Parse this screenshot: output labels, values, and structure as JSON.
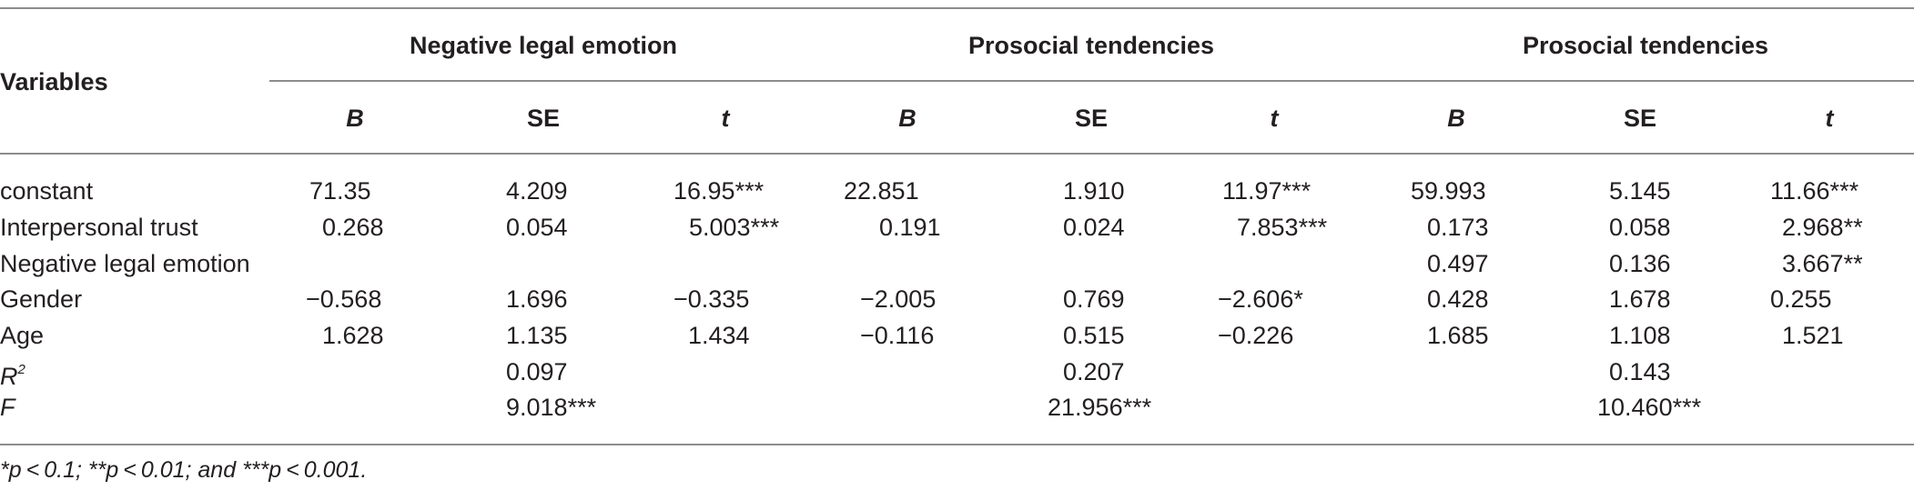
{
  "header": {
    "variables_label": "Variables",
    "groups": [
      {
        "label": "Negative legal emotion"
      },
      {
        "label": "Prosocial tendencies"
      },
      {
        "label": "Prosocial tendencies"
      }
    ],
    "subcolumns": [
      "B",
      "SE",
      "t"
    ]
  },
  "rows": [
    {
      "label": "constant",
      "values": [
        "71.35",
        "4.209",
        "16.95***",
        "22.851",
        "1.910",
        "11.97***",
        "59.993",
        "5.145",
        "11.66***"
      ]
    },
    {
      "label": "Interpersonal trust",
      "values": [
        "0.268",
        "0.054",
        "5.003***",
        "0.191",
        "0.024",
        "7.853***",
        "0.173",
        "0.058",
        "2.968**"
      ]
    },
    {
      "label": "Negative legal emotion",
      "values": [
        "",
        "",
        "",
        "",
        "",
        "",
        "0.497",
        "0.136",
        "3.667**"
      ]
    },
    {
      "label": "Gender",
      "values": [
        "−0.568",
        "1.696",
        "−0.335",
        "−2.005",
        "0.769",
        "−2.606*",
        "0.428",
        "1.678",
        "0.255"
      ]
    },
    {
      "label": "Age",
      "values": [
        "1.628",
        "1.135",
        "1.434",
        "−0.116",
        "0.515",
        "−0.226",
        "1.685",
        "1.108",
        "1.521"
      ]
    }
  ],
  "stats": {
    "r2": {
      "label": "R",
      "sup": "2",
      "values": [
        "0.097",
        "0.207",
        "0.143"
      ]
    },
    "f": {
      "label": "F",
      "values": [
        "9.018***",
        "21.956***",
        "10.460***"
      ]
    }
  },
  "footnote": "*p < 0.1; **p < 0.01; and ***p < 0.001."
}
